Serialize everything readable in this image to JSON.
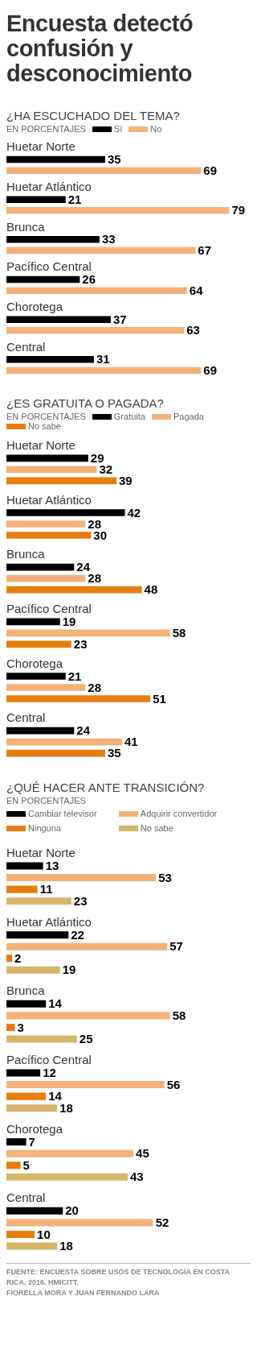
{
  "chart_data": [
    {
      "type": "bar",
      "orientation": "horizontal",
      "title": "Encuesta detectó confusión y desconocimiento",
      "subtitle": "¿HA ESCUCHADO DEL TEMA?",
      "annotations": [
        "EN PORCENTAJES"
      ],
      "legend": "top",
      "data_labels": true,
      "categories": [
        "Huetar Norte",
        "Huetar Atlántico",
        "Brunca",
        "Pacífico Central",
        "Chorotega",
        "Central"
      ],
      "series": [
        {
          "name": "Sí",
          "color": "#000000",
          "values": [
            35,
            21,
            33,
            26,
            37,
            31
          ]
        },
        {
          "name": "No",
          "color": "#f2b27a",
          "values": [
            69,
            79,
            67,
            64,
            63,
            69
          ]
        }
      ]
    },
    {
      "type": "bar",
      "orientation": "horizontal",
      "title": "¿ES GRATUITA O PAGADA?",
      "annotations": [
        "EN PORCENTAJES"
      ],
      "legend": "top",
      "data_labels": true,
      "categories": [
        "Huetar Norte",
        "Huetar Atlántico",
        "Brunca",
        "Pacífico Central",
        "Chorotega",
        "Central"
      ],
      "series": [
        {
          "name": "Gratuita",
          "color": "#000000",
          "values": [
            29,
            42,
            24,
            19,
            21,
            24
          ]
        },
        {
          "name": "Pagada",
          "color": "#f2b27a",
          "values": [
            32,
            28,
            28,
            58,
            28,
            41
          ]
        },
        {
          "name": "No sabe",
          "color": "#e57e0e",
          "values": [
            39,
            30,
            48,
            23,
            51,
            35
          ]
        }
      ]
    },
    {
      "type": "bar",
      "orientation": "horizontal",
      "title": "¿QUÉ HACER ANTE TRANSICIÓN?",
      "annotations": [
        "EN PORCENTAJES",
        "FUENTE: ENCUESTA SOBRE USOS DE TECNOLOGÍA EN COSTA RICA, 2016. HMICITT.",
        "FIORELLA MORA Y JUAN FERNANDO LARA"
      ],
      "legend": "top",
      "data_labels": true,
      "categories": [
        "Huetar Norte",
        "Huetar Atlántico",
        "Brunca",
        "Pacífico Central",
        "Chorotega",
        "Central"
      ],
      "series": [
        {
          "name": "Cambiar televisor",
          "color": "#000000",
          "values": [
            13,
            22,
            14,
            12,
            7,
            20
          ]
        },
        {
          "name": "Adquirir convertidor",
          "color": "#f2b27a",
          "values": [
            53,
            57,
            58,
            56,
            45,
            52
          ]
        },
        {
          "name": "Ninguna",
          "color": "#e57e0e",
          "values": [
            11,
            2,
            3,
            14,
            5,
            10
          ]
        },
        {
          "name": "No sabe",
          "color": "#d4b56a",
          "values": [
            23,
            19,
            25,
            18,
            43,
            18
          ]
        }
      ]
    }
  ]
}
